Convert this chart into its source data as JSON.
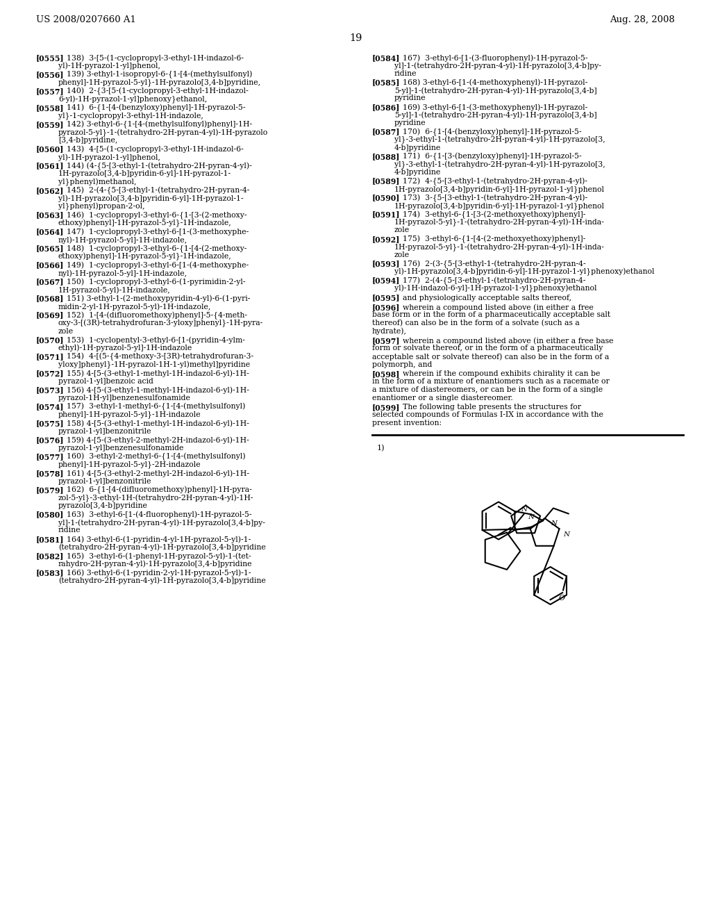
{
  "header_left": "US 2008/0207660 A1",
  "header_right": "Aug. 28, 2008",
  "page_number": "19",
  "left_entries": [
    {
      "tag": "[0555]",
      "lines": [
        "138)  3-[5-(1-cyclopropyl-3-ethyl-1H-indazol-6-",
        "    yl)-1H-pyrazol-1-yl]phenol,"
      ]
    },
    {
      "tag": "[0556]",
      "lines": [
        "139) 3-ethyl-1-isopropyl-6-{1-[4-(methylsulfonyl)",
        "    phenyl]-1H-pyrazol-5-yl}-1H-pyrazolo[3,4-b]pyridine,"
      ]
    },
    {
      "tag": "[0557]",
      "lines": [
        "140)  2-{3-[5-(1-cyclopropyl-3-ethyl-1H-indazol-",
        "    6-yl)-1H-pyrazol-1-yl]phenoxy}ethanol,"
      ]
    },
    {
      "tag": "[0558]",
      "lines": [
        "141)  6-{1-[4-(benzyloxy)phenyl]-1H-pyrazol-5-",
        "    yl}-1-cyclopropyl-3-ethyl-1H-indazole,"
      ]
    },
    {
      "tag": "[0559]",
      "lines": [
        "142) 3-ethyl-6-{1-[4-(methylsulfonyl)phenyl]-1H-",
        "    pyrazol-5-yl}-1-(tetrahydro-2H-pyran-4-yl)-1H-pyrazolo",
        "    [3,4-b]pyridine,"
      ]
    },
    {
      "tag": "[0560]",
      "lines": [
        "143)  4-[5-(1-cyclopropyl-3-ethyl-1H-indazol-6-",
        "    yl)-1H-pyrazol-1-yl]phenol,"
      ]
    },
    {
      "tag": "[0561]",
      "lines": [
        "144) (4-{5-[3-ethyl-1-(tetrahydro-2H-pyran-4-yl)-",
        "    1H-pyrazolo[3,4-b]pyridin-6-yl]-1H-pyrazol-1-",
        "    yl}phenyl)methanol,"
      ]
    },
    {
      "tag": "[0562]",
      "lines": [
        "145)  2-(4-{5-[3-ethyl-1-(tetrahydro-2H-pyran-4-",
        "    yl)-1H-pyrazolo[3,4-b]pyridin-6-yl]-1H-pyrazol-1-",
        "    yl}phenyl)propan-2-ol,"
      ]
    },
    {
      "tag": "[0563]",
      "lines": [
        "146)  1-cyclopropyl-3-ethyl-6-{1-[3-(2-methoxy-",
        "    ethoxy)phenyl]-1H-pyrazol-5-yl}-1H-indazole,"
      ]
    },
    {
      "tag": "[0564]",
      "lines": [
        "147)  1-cyclopropyl-3-ethyl-6-[1-(3-methoxyphe-",
        "    nyl)-1H-pyrazol-5-yl]-1H-indazole,"
      ]
    },
    {
      "tag": "[0565]",
      "lines": [
        "148)  1-cyclopropyl-3-ethyl-6-{1-[4-(2-methoxy-",
        "    ethoxy)phenyl]-1H-pyrazol-5-yl}-1H-indazole,"
      ]
    },
    {
      "tag": "[0566]",
      "lines": [
        "149)  1-cyclopropyl-3-ethyl-6-[1-(4-methoxyphe-",
        "    nyl)-1H-pyrazol-5-yl]-1H-indazole,"
      ]
    },
    {
      "tag": "[0567]",
      "lines": [
        "150)  1-cyclopropyl-3-ethyl-6-(1-pyrimidin-2-yl-",
        "    1H-pyrazol-5-yl)-1H-indazole,"
      ]
    },
    {
      "tag": "[0568]",
      "lines": [
        "151) 3-ethyl-1-(2-methoxypyridin-4-yl)-6-(1-pyri-",
        "    midin-2-yl-1H-pyrazol-5-yl)-1H-indazole,"
      ]
    },
    {
      "tag": "[0569]",
      "lines": [
        "152)  1-[4-(difluoromethoxy)phenyl]-5-{4-meth-",
        "    oxy-3-[(3R)-tetrahydrofuran-3-yloxy]phenyl}-1H-pyra-",
        "    zole"
      ]
    },
    {
      "tag": "[0570]",
      "lines": [
        "153)  1-cyclopentyl-3-ethyl-6-[1-(pyridin-4-ylm-",
        "    ethyl)-1H-pyrazol-5-yl]-1H-indazole"
      ]
    },
    {
      "tag": "[0571]",
      "lines": [
        "154)  4-[(5-{4-methoxy-3-[3R)-tetrahydrofuran-3-",
        "    yloxy]phenyl}-1H-pyrazol-1H-1-yl)methyl]pyridine"
      ]
    },
    {
      "tag": "[0572]",
      "lines": [
        "155) 4-[5-(3-ethyl-1-methyl-1H-indazol-6-yl)-1H-",
        "    pyrazol-1-yl]benzoic acid"
      ]
    },
    {
      "tag": "[0573]",
      "lines": [
        "156) 4-[5-(3-ethyl-1-methyl-1H-indazol-6-yl)-1H-",
        "    pyrazol-1H-yl]benzenesulfonamide"
      ]
    },
    {
      "tag": "[0574]",
      "lines": [
        "157)  3-ethyl-1-methyl-6-{1-[4-(methylsulfonyl)",
        "    phenyl]-1H-pyrazol-5-yl}-1H-indazole"
      ]
    },
    {
      "tag": "[0575]",
      "lines": [
        "158) 4-[5-(3-ethyl-1-methyl-1H-indazol-6-yl)-1H-",
        "    pyrazol-1-yl]benzonitrile"
      ]
    },
    {
      "tag": "[0576]",
      "lines": [
        "159) 4-[5-(3-ethyl-2-methyl-2H-indazol-6-yl)-1H-",
        "    pyrazol-1-yl]benzenesulfonamide"
      ]
    },
    {
      "tag": "[0577]",
      "lines": [
        "160)  3-ethyl-2-methyl-6-{1-[4-(methylsulfonyl)",
        "    phenyl]-1H-pyrazol-5-yl}-2H-indazole"
      ]
    },
    {
      "tag": "[0578]",
      "lines": [
        "161) 4-[5-(3-ethyl-2-methyl-2H-indazol-6-yl)-1H-",
        "    pyrazol-1-yl]benzonitrile"
      ]
    },
    {
      "tag": "[0579]",
      "lines": [
        "162)  6-{1-[4-(difluoromethoxy)phenyl]-1H-pyra-",
        "    zol-5-yl}-3-ethyl-1H-(tetrahydro-2H-pyran-4-yl)-1H-",
        "    pyrazolo[3,4-b]pyridine"
      ]
    },
    {
      "tag": "[0580]",
      "lines": [
        "163)  3-ethyl-6-[1-(4-fluorophenyl)-1H-pyrazol-5-",
        "    yl]-1-(tetrahydro-2H-pyran-4-yl)-1H-pyrazolo[3,4-b]py-",
        "    ridine"
      ]
    },
    {
      "tag": "[0581]",
      "lines": [
        "164) 3-ethyl-6-(1-pyridin-4-yl-1H-pyrazol-5-yl)-1-",
        "    (tetrahydro-2H-pyran-4-yl)-1H-pyrazolo[3,4-b]pyridine"
      ]
    },
    {
      "tag": "[0582]",
      "lines": [
        "165)  3-ethyl-6-(1-phenyl-1H-pyrazol-5-yl)-1-(tet-",
        "    rahydro-2H-pyran-4-yl)-1H-pyrazolo[3,4-b]pyridine"
      ]
    },
    {
      "tag": "[0583]",
      "lines": [
        "166) 3-ethyl-6-(1-pyridin-2-yl-1H-pyrazol-5-yl)-1-",
        "    (tetrahydro-2H-pyran-4-yl)-1H-pyrazolo[3,4-b]pyridine"
      ]
    }
  ],
  "right_entries": [
    {
      "tag": "[0584]",
      "lines": [
        "167)  3-ethyl-6-[1-(3-fluorophenyl)-1H-pyrazol-5-",
        "    yl]-1-(tetrahydro-2H-pyran-4-yl)-1H-pyrazolo[3,4-b]py-",
        "    ridine"
      ]
    },
    {
      "tag": "[0585]",
      "lines": [
        "168) 3-ethyl-6-[1-(4-methoxyphenyl)-1H-pyrazol-",
        "    5-yl]-1-(tetrahydro-2H-pyran-4-yl)-1H-pyrazolo[3,4-b]",
        "    pyridine"
      ]
    },
    {
      "tag": "[0586]",
      "lines": [
        "169) 3-ethyl-6-[1-(3-methoxyphenyl)-1H-pyrazol-",
        "    5-yl]-1-(tetrahydro-2H-pyran-4-yl)-1H-pyrazolo[3,4-b]",
        "    pyridine"
      ]
    },
    {
      "tag": "[0587]",
      "lines": [
        "170)  6-{1-[4-(benzyloxy)phenyl]-1H-pyrazol-5-",
        "    yl}-3-ethyl-1-(tetrahydro-2H-pyran-4-yl)-1H-pyrazolo[3,",
        "    4-b]pyridine"
      ]
    },
    {
      "tag": "[0588]",
      "lines": [
        "171)  6-{1-[3-(benzyloxy)phenyl]-1H-pyrazol-5-",
        "    yl}-3-ethyl-1-(tetrahydro-2H-pyran-4-yl)-1H-pyrazolo[3,",
        "    4-b]pyridine"
      ]
    },
    {
      "tag": "[0589]",
      "lines": [
        "172)  4-{5-[3-ethyl-1-(tetrahydro-2H-pyran-4-yl)-",
        "    1H-pyrazolo[3,4-b]pyridin-6-yl]-1H-pyrazol-1-yl}phenol"
      ]
    },
    {
      "tag": "[0590]",
      "lines": [
        "173)  3-{5-[3-ethyl-1-(tetrahydro-2H-pyran-4-yl)-",
        "    1H-pyrazolo[3,4-b]pyridin-6-yl]-1H-pyrazol-1-yl}phenol"
      ]
    },
    {
      "tag": "[0591]",
      "lines": [
        "174)  3-ethyl-6-{1-[3-(2-methoxyethoxy)phenyl]-",
        "    1H-pyrazol-5-yl}-1-(tetrahydro-2H-pyran-4-yl)-1H-inda-",
        "    zole"
      ]
    },
    {
      "tag": "[0592]",
      "lines": [
        "175)  3-ethyl-6-{1-[4-(2-methoxyethoxy)phenyl]-",
        "    1H-pyrazol-5-yl}-1-(tetrahydro-2H-pyran-4-yl)-1H-inda-",
        "    zole"
      ]
    },
    {
      "tag": "[0593]",
      "lines": [
        "176)  2-(3-{5-[3-ethyl-1-(tetrahydro-2H-pyran-4-",
        "    yl)-1H-pyrazolo[3,4-b]pyridin-6-yl]-1H-pyrazol-1-yl}phenoxy)ethanol"
      ]
    },
    {
      "tag": "[0594]",
      "lines": [
        "177)  2-(4-{5-[3-ethyl-1-(tetrahydro-2H-pyran-4-",
        "    yl)-1H-indazol-6-yl]-1H-pyrazol-1-yl}phenoxy)ethanol"
      ]
    },
    {
      "tag": "[0595]",
      "lines": [
        "and physiologically acceptable salts thereof,"
      ]
    },
    {
      "tag": "[0596]",
      "lines": [
        "wherein a compound listed above (in either a free",
        "base form or in the form of a pharmaceutically acceptable salt",
        "thereof) can also be in the form of a solvate (such as a",
        "hydrate),"
      ]
    },
    {
      "tag": "[0597]",
      "lines": [
        "wherein a compound listed above (in either a free base",
        "form or solvate thereof, or in the form of a pharmaceutically",
        "acceptable salt or solvate thereof) can also be in the form of a",
        "polymorph, and"
      ]
    },
    {
      "tag": "[0598]",
      "lines": [
        "wherein if the compound exhibits chirality it can be",
        "in the form of a mixture of enantiomers such as a racemate or",
        "a mixture of diastereomers, or can be in the form of a single",
        "enantiomer or a single diastereomer."
      ]
    },
    {
      "tag": "[0599]",
      "lines": [
        "The following table presents the structures for",
        "selected compounds of Formulas I-IX in accordance with the",
        "present invention:"
      ]
    }
  ]
}
